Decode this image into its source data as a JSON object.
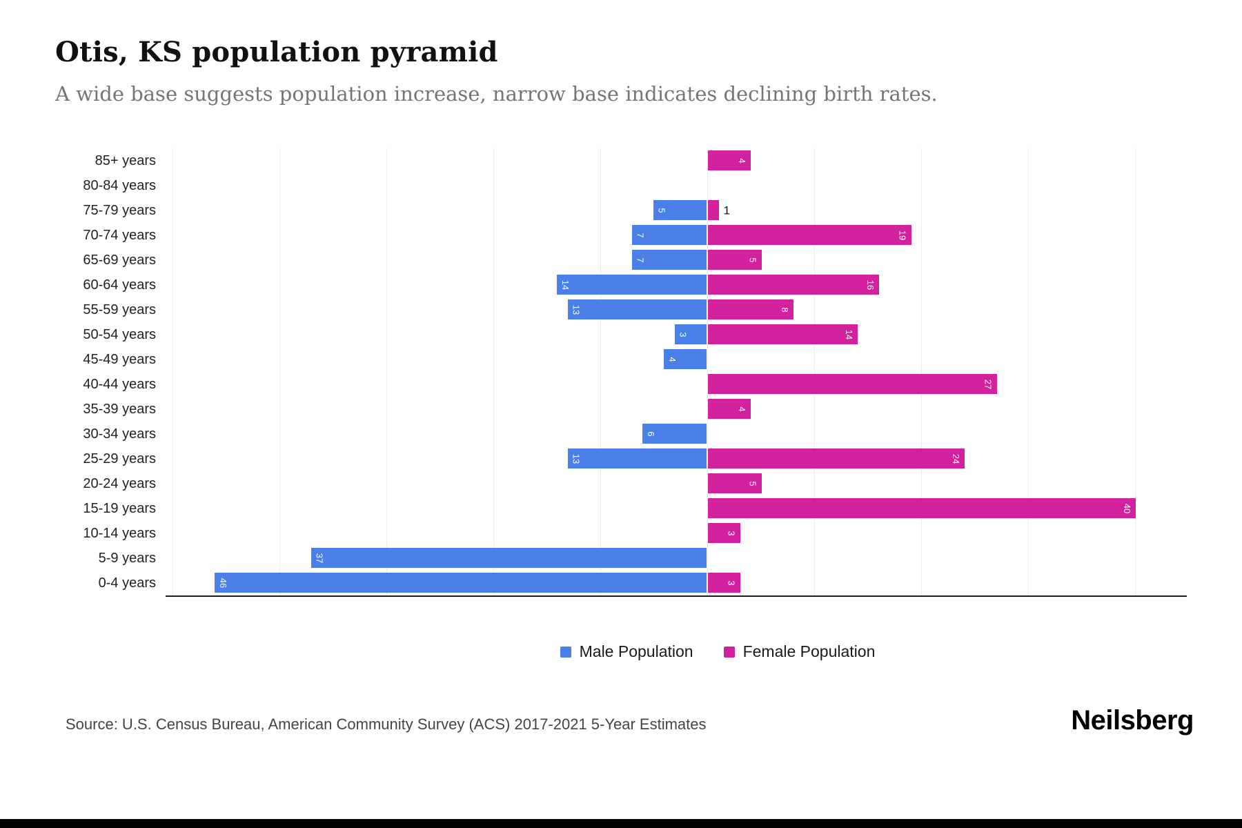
{
  "chart_data": {
    "type": "bar",
    "variant": "population-pyramid",
    "title": "Otis, KS population pyramid",
    "subtitle": "A wide base suggests population increase, narrow base indicates declining birth rates.",
    "categories": [
      "85+ years",
      "80-84 years",
      "75-79 years",
      "70-74 years",
      "65-69 years",
      "60-64 years",
      "55-59 years",
      "50-54 years",
      "45-49 years",
      "40-44 years",
      "35-39 years",
      "30-34 years",
      "25-29 years",
      "20-24 years",
      "15-19 years",
      "10-14 years",
      "5-9 years",
      "0-4 years"
    ],
    "series": [
      {
        "name": "Male Population",
        "side": "left",
        "color": "#4A7FE8",
        "values": [
          0,
          0,
          5,
          7,
          7,
          14,
          13,
          3,
          4,
          0,
          0,
          6,
          13,
          0,
          0,
          0,
          37,
          46
        ]
      },
      {
        "name": "Female Population",
        "side": "right",
        "color": "#D2219C",
        "values": [
          4,
          0,
          1,
          19,
          5,
          16,
          8,
          14,
          0,
          27,
          4,
          0,
          24,
          5,
          40,
          3,
          0,
          3
        ]
      }
    ],
    "value_axis_max": 46,
    "xlabel": "",
    "ylabel": "",
    "grid": "vertical-light",
    "legend_position": "bottom",
    "bar_value_labels": "inside-rotated-white, outside-black-when-bar-too-small"
  },
  "footer": {
    "source": "Source: U.S. Census Bureau, American Community Survey (ACS) 2017-2021 5-Year Estimates",
    "brand": "Neilsberg"
  }
}
